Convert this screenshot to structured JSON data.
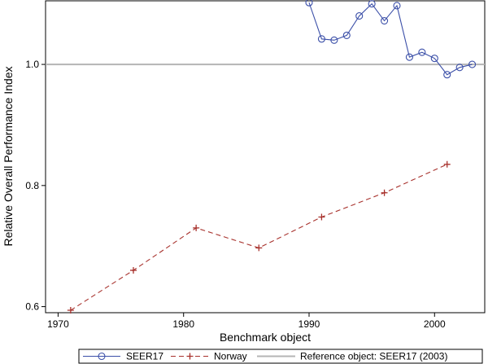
{
  "chart_data": {
    "type": "line",
    "title": "",
    "xlabel": "Benchmark object",
    "ylabel": "Relative Overall Performance Index",
    "xlim": [
      1969,
      2004
    ],
    "ylim": [
      0.59,
      1.105
    ],
    "x_ticks": [
      1970,
      1980,
      1990,
      2000
    ],
    "x_tick_labels": [
      "1970",
      "1980",
      "1990",
      "2000"
    ],
    "y_ticks": [
      0.6,
      0.8,
      1.0
    ],
    "y_tick_labels": [
      "0.6",
      "0.8",
      "1.0"
    ],
    "grid": false,
    "legend_position": "bottom",
    "series": [
      {
        "name": "SEER17",
        "color": "#3b4fa8",
        "marker": "circle",
        "dash": "solid",
        "x": [
          1990,
          1991,
          1992,
          1993,
          1994,
          1995,
          1996,
          1997,
          1998,
          1999,
          2000,
          2001,
          2002,
          2003
        ],
        "y": [
          1.102,
          1.042,
          1.04,
          1.048,
          1.08,
          1.1,
          1.072,
          1.097,
          1.012,
          1.02,
          1.01,
          0.983,
          0.995,
          1.0
        ]
      },
      {
        "name": "Norway",
        "color": "#a8322d",
        "marker": "plus",
        "dash": "dashed",
        "x": [
          1971,
          1976,
          1981,
          1986,
          1991,
          1996,
          2001
        ],
        "y": [
          0.594,
          0.66,
          0.73,
          0.697,
          0.748,
          0.788,
          0.835
        ]
      }
    ],
    "reference_line": {
      "name": "Reference object: SEER17 (2003)",
      "y": 1.0,
      "color": "#b5b5b5"
    }
  }
}
